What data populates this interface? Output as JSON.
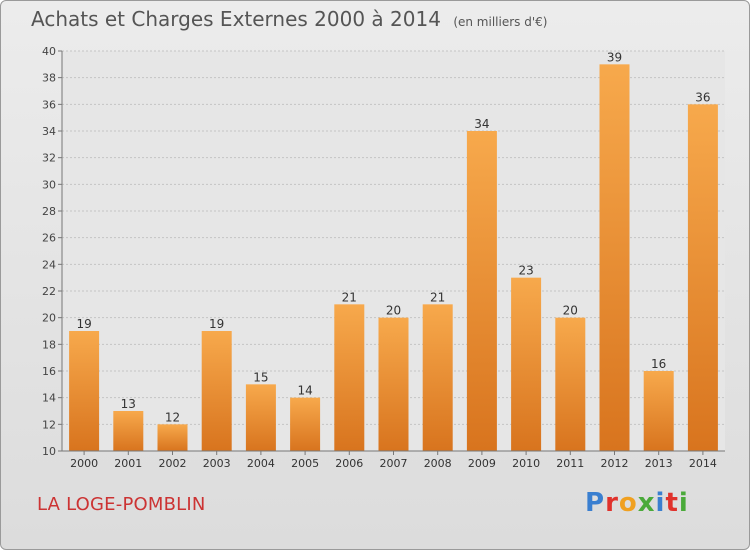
{
  "header": {
    "title": "Achats et Charges Externes 2000 à 2014",
    "unit": "(en milliers d'€)"
  },
  "footer": {
    "commune": "LA LOGE-POMBLIN",
    "logo_text": "Proxiti",
    "logo_colors": [
      "#3a7fd0",
      "#e0322c",
      "#f0a020",
      "#4aaa3a",
      "#3a7fd0",
      "#e0322c",
      "#4aaa3a"
    ]
  },
  "chart_data": {
    "type": "bar",
    "title": "Achats et Charges Externes 2000 à 2014",
    "categories": [
      "2000",
      "2001",
      "2002",
      "2003",
      "2004",
      "2005",
      "2006",
      "2007",
      "2008",
      "2009",
      "2010",
      "2011",
      "2012",
      "2013",
      "2014"
    ],
    "values": [
      19,
      13,
      12,
      19,
      15,
      14,
      21,
      20,
      21,
      34,
      23,
      20,
      39,
      16,
      36
    ],
    "ylim": [
      10,
      40
    ],
    "yticks": [
      10,
      12,
      14,
      16,
      18,
      20,
      22,
      24,
      26,
      28,
      30,
      32,
      34,
      36,
      38,
      40
    ],
    "grid": true,
    "bar_color": "#f0a040",
    "xlabel": "",
    "ylabel": ""
  }
}
